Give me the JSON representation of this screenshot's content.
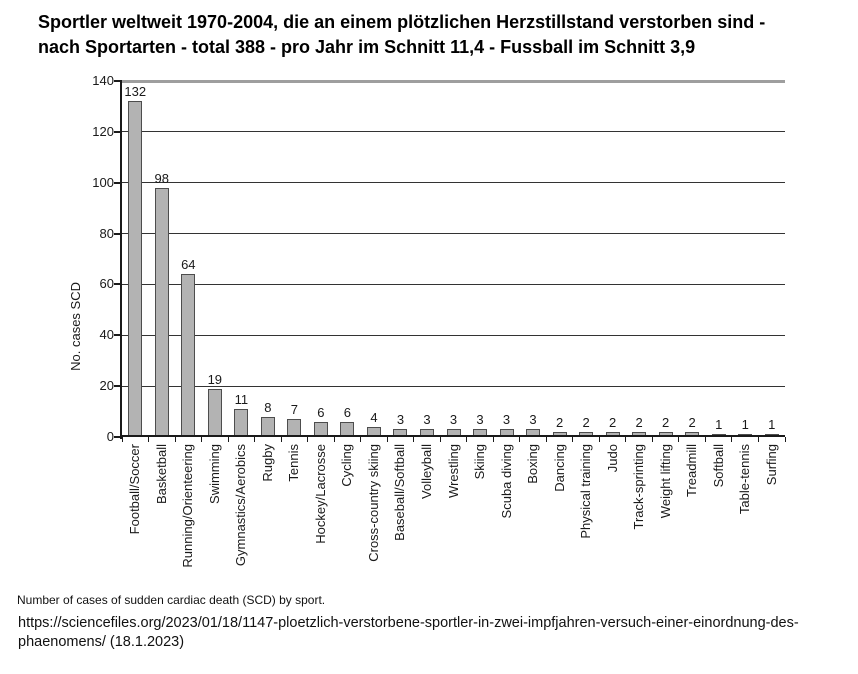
{
  "caption": "Number of cases of sudden cardiac death (SCD) by sport.",
  "source": "https://sciencefiles.org/2023/01/18/1147-ploetzlich-verstorbene-sportler-in-zwei-impfjahren-versuch-einer-einordnung-des-phaenomens/ (18.1.2023)",
  "chart_data": {
    "type": "bar",
    "title": "Sportler weltweit 1970-2004, die an einem plötzlichen Herzstillstand verstorben sind - nach Sportarten - total 388 - pro Jahr im Schnitt 11,4 - Fussball im Schnitt 3,9",
    "title_line1": "Sportler weltweit 1970-2004, die an einem plötzlichen Herzstillstand verstorben sind -",
    "title_line2": "nach Sportarten - total 388 - pro Jahr im Schnitt 11,4 - Fussball im Schnitt 3,9",
    "categories": [
      "Football/Soccer",
      "Basketball",
      "Running/Orienteering",
      "Swimming",
      "Gymnastics/Aerobics",
      "Rugby",
      "Tennis",
      "Hockey/Lacrosse",
      "Cycling",
      "Cross-country skiing",
      "Baseball/Softball",
      "Volleyball",
      "Wrestling",
      "Skiing",
      "Scuba diving",
      "Boxing",
      "Dancing",
      "Physical training",
      "Judo",
      "Track-sprinting",
      "Weight lifting",
      "Treadmill",
      "Softball",
      "Table-tennis",
      "Surfing"
    ],
    "values": [
      132,
      98,
      64,
      19,
      11,
      8,
      7,
      6,
      6,
      4,
      3,
      3,
      3,
      3,
      3,
      3,
      2,
      2,
      2,
      2,
      2,
      2,
      1,
      1,
      1
    ],
    "total": 388,
    "xlabel": "",
    "ylabel": "No. cases SCD",
    "ylim": [
      0,
      140
    ],
    "ytick_step": 20,
    "grid": true,
    "legend": "none",
    "bar_labels": true,
    "colors": {
      "bar_fill": "#b3b3b3",
      "bar_border": "#4d4d4d",
      "gridline": "#333333",
      "axis": "#1a1a1a",
      "text": "#1a1a1a",
      "background": "#ffffff"
    }
  }
}
